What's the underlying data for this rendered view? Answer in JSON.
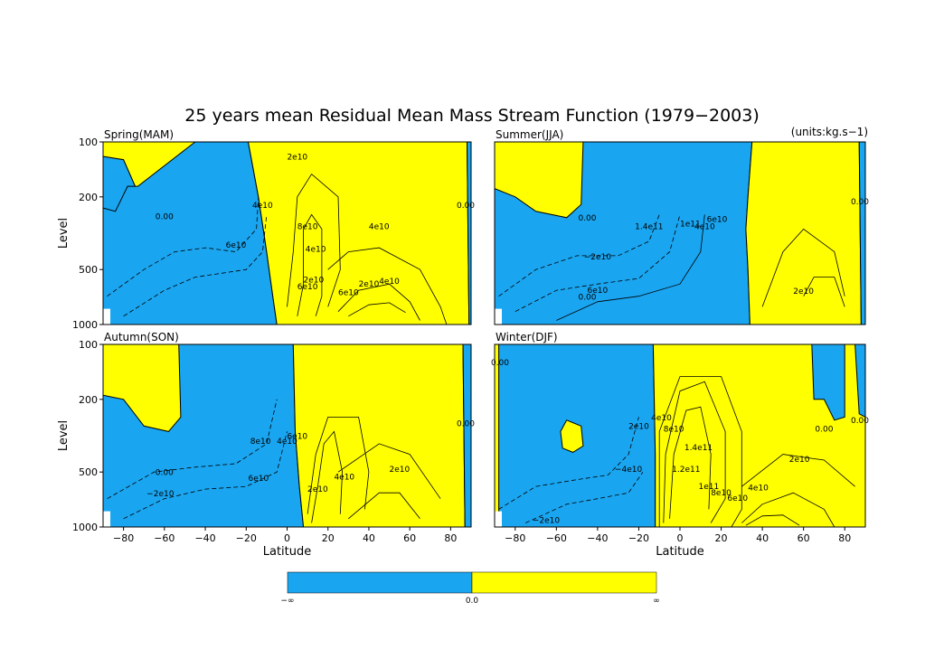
{
  "figure": {
    "title": "25 years mean Residual Mean Mass Stream Function (1979−2003)",
    "units": "(units:kg.s−1)"
  },
  "colors": {
    "negative": "#1aa5f0",
    "positive": "#ffff00",
    "contour": "#000000"
  },
  "chart_data": [
    {
      "type": "heatmap",
      "panel": "Spring(MAM)",
      "xlabel": "",
      "ylabel": "Level",
      "xlim": [
        -90,
        90
      ],
      "ylim": [
        1000,
        100
      ],
      "yticks": [
        100,
        200,
        500,
        1000
      ],
      "xticks": [],
      "sign_boundary": [
        [
          -90,
          120
        ],
        [
          -80,
          125
        ],
        [
          -72,
          200
        ],
        [
          -62,
          265
        ],
        [
          -55,
          270
        ],
        [
          -47,
          240
        ],
        [
          -45,
          100
        ]
      ],
      "sign_boundary2": [
        [
          -19,
          100
        ],
        [
          -14,
          200
        ],
        [
          -10,
          400
        ],
        [
          -7,
          700
        ],
        [
          -5,
          1000
        ]
      ],
      "sign_boundary3": [
        [
          88,
          100
        ],
        [
          89,
          1000
        ]
      ],
      "contour_labels": [
        "0.00",
        "2e10",
        "4e10",
        "6e10",
        "8e10",
        "4e10",
        "2e10",
        "6e10",
        "4e10",
        "6e10",
        "0.00",
        "2e10",
        "4e10"
      ]
    },
    {
      "type": "heatmap",
      "panel": "Summer(JJA)",
      "xlabel": "",
      "ylabel": "",
      "xlim": [
        -90,
        90
      ],
      "ylim": [
        1000,
        100
      ],
      "xticks": [],
      "contour_labels": [
        "0.00",
        "−2e10",
        "1.4e11",
        "6e10",
        "1e11",
        "0.00",
        "2e10",
        "4e10",
        "6e10",
        "0.00"
      ]
    },
    {
      "type": "heatmap",
      "panel": "Autumn(SON)",
      "xlabel": "Latitude",
      "ylabel": "Level",
      "xlim": [
        -90,
        90
      ],
      "ylim": [
        1000,
        100
      ],
      "xticks": [
        -80,
        -60,
        -40,
        -20,
        0,
        20,
        40,
        60,
        80
      ],
      "yticks": [
        100,
        200,
        500,
        1000
      ],
      "contour_labels": [
        "0.00",
        "−2e10",
        "6e10",
        "8e10",
        "6e10",
        "4e10",
        "2e10",
        "2e10",
        "4e10",
        "0.00"
      ]
    },
    {
      "type": "heatmap",
      "panel": "Winter(DJF)",
      "xlabel": "Latitude",
      "ylabel": "",
      "xlim": [
        -90,
        90
      ],
      "ylim": [
        1000,
        100
      ],
      "xticks": [
        -80,
        -60,
        -40,
        -20,
        0,
        20,
        40,
        60,
        80
      ],
      "contour_labels": [
        "0.00",
        "−2e10",
        "−4e10",
        "2e10",
        "4e10",
        "8e10",
        "1.2e11",
        "1.4e11",
        "1e11",
        "8e10",
        "6e10",
        "4e10",
        "2e10",
        "0.00",
        "0.00"
      ]
    }
  ],
  "colorbar": {
    "labels": [
      "−∞",
      "0.0",
      "∞"
    ]
  }
}
